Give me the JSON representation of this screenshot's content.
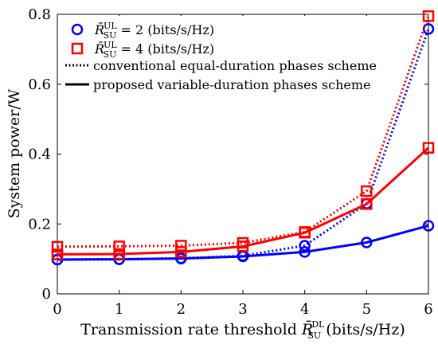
{
  "chart_data": {
    "type": "line",
    "xlabel_prefix": "Transmission rate threshold ",
    "xlabel_symbol": "R̄",
    "xlabel_sub": "SU",
    "xlabel_sup": "DL",
    "xlabel_suffix": " (bits/s/Hz)",
    "ylabel": "System power/W",
    "xlim": [
      0,
      6
    ],
    "ylim": [
      0,
      0.8
    ],
    "xticks": [
      "0",
      "1",
      "2",
      "3",
      "4",
      "5",
      "6"
    ],
    "yticks": [
      "0",
      "0.2",
      "0.4",
      "0.6",
      "0.8"
    ],
    "grid": false,
    "legend_position": "top-left",
    "x": [
      0,
      1,
      2,
      3,
      4,
      5,
      6
    ],
    "series": [
      {
        "group": "R2",
        "marker": "circle",
        "style": "dotted",
        "color": "#0000ff",
        "values": [
          0.098,
          0.099,
          0.102,
          0.109,
          0.138,
          0.258,
          0.758
        ]
      },
      {
        "group": "R2",
        "marker": "circle",
        "style": "solid",
        "color": "#0000ff",
        "values": [
          0.098,
          0.099,
          0.101,
          0.107,
          0.12,
          0.147,
          0.195
        ]
      },
      {
        "group": "R4",
        "marker": "square",
        "style": "dotted",
        "color": "#ff0000",
        "values": [
          0.135,
          0.136,
          0.138,
          0.146,
          0.177,
          0.294,
          0.795
        ]
      },
      {
        "group": "R4",
        "marker": "square",
        "style": "solid",
        "color": "#ff0000",
        "values": [
          0.113,
          0.114,
          0.12,
          0.136,
          0.175,
          0.257,
          0.418
        ]
      }
    ],
    "legend": [
      {
        "kind": "marker",
        "marker": "circle",
        "color": "#0000ff",
        "symbol": "R̄",
        "sub": "SU",
        "sup": "UL",
        "text": " = 2 (bits/s/Hz)"
      },
      {
        "kind": "marker",
        "marker": "square",
        "color": "#ff0000",
        "symbol": "R̄",
        "sub": "SU",
        "sup": "UL",
        "text": " = 4 (bits/s/Hz)"
      },
      {
        "kind": "line",
        "style": "dotted",
        "color": "#000000",
        "text": "conventional equal-duration phases scheme"
      },
      {
        "kind": "line",
        "style": "solid",
        "color": "#000000",
        "text": "proposed variable-duration phases scheme"
      }
    ]
  }
}
